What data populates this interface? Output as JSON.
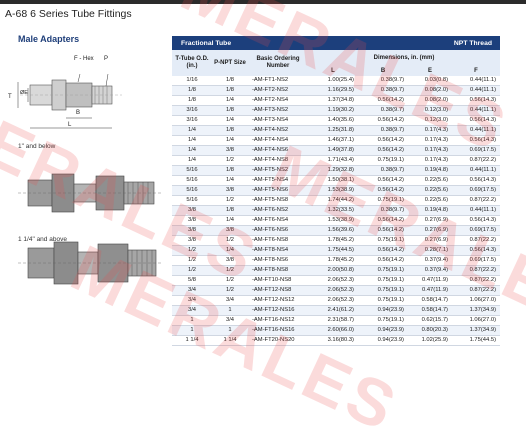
{
  "header": {
    "title": "A-68  6 Series Tube Fittings"
  },
  "section": {
    "title": "Male Adapters"
  },
  "diagram": {
    "labels": {
      "f_hex": "F - Hex",
      "p": "P",
      "t": "T",
      "d": "ØE",
      "b": "B",
      "l": "L"
    },
    "caption_top": "1\" and below",
    "caption_bottom": "1 1/4\" and above"
  },
  "table": {
    "band_left": "Fractional Tube",
    "band_right": "NPT Thread",
    "col_tube": "T-Tube O.D. (in.)",
    "col_npt": "P-NPT Size",
    "col_basic": "Basic Ordering Number",
    "col_dims": "Dimensions, in. (mm)",
    "sub_l": "L",
    "sub_b": "B",
    "sub_e": "E",
    "sub_f": "F",
    "rows": [
      [
        "1/16",
        "1/8",
        "-AM-FT1-NS2",
        "1.00(25.4)",
        "0.38(9.7)",
        "0.03(0.8)",
        "0.44(11.1)"
      ],
      [
        "1/8",
        "1/8",
        "-AM-FT2-NS2",
        "1.16(29.5)",
        "0.38(9.7)",
        "0.08(2.0)",
        "0.44(11.1)"
      ],
      [
        "1/8",
        "1/4",
        "-AM-FT2-NS4",
        "1.37(34.8)",
        "0.56(14.2)",
        "0.08(2.0)",
        "0.56(14.3)"
      ],
      [
        "3/16",
        "1/8",
        "-AM-FT3-NS2",
        "1.19(30.2)",
        "0.38(9.7)",
        "0.12(3.0)",
        "0.44(11.1)"
      ],
      [
        "3/16",
        "1/4",
        "-AM-FT3-NS4",
        "1.40(35.6)",
        "0.56(14.2)",
        "0.12(3.0)",
        "0.56(14.3)"
      ],
      [
        "1/4",
        "1/8",
        "-AM-FT4-NS2",
        "1.25(31.8)",
        "0.38(9.7)",
        "0.17(4.3)",
        "0.44(11.1)"
      ],
      [
        "1/4",
        "1/4",
        "-AM-FT4-NS4",
        "1.46(37.1)",
        "0.56(14.2)",
        "0.17(4.3)",
        "0.56(14.3)"
      ],
      [
        "1/4",
        "3/8",
        "-AM-FT4-NS6",
        "1.49(37.8)",
        "0.56(14.2)",
        "0.17(4.3)",
        "0.69(17.5)"
      ],
      [
        "1/4",
        "1/2",
        "-AM-FT4-NS8",
        "1.71(43.4)",
        "0.75(19.1)",
        "0.17(4.3)",
        "0.87(22.2)"
      ],
      [
        "5/16",
        "1/8",
        "-AM-FT5-NS2",
        "1.29(32.8)",
        "0.38(9.7)",
        "0.19(4.8)",
        "0.44(11.1)"
      ],
      [
        "5/16",
        "1/4",
        "-AM-FT5-NS4",
        "1.50(38.1)",
        "0.56(14.2)",
        "0.22(5.6)",
        "0.56(14.3)"
      ],
      [
        "5/16",
        "3/8",
        "-AM-FT5-NS6",
        "1.53(38.9)",
        "0.56(14.2)",
        "0.22(5.6)",
        "0.69(17.5)"
      ],
      [
        "5/16",
        "1/2",
        "-AM-FT5-NS8",
        "1.74(44.2)",
        "0.75(19.1)",
        "0.22(5.6)",
        "0.87(22.2)"
      ],
      [
        "3/8",
        "1/8",
        "-AM-FT6-NS2",
        "1.32(33.5)",
        "0.38(9.7)",
        "0.19(4.8)",
        "0.44(11.1)"
      ],
      [
        "3/8",
        "1/4",
        "-AM-FT6-NS4",
        "1.53(38.9)",
        "0.56(14.2)",
        "0.27(6.9)",
        "0.56(14.3)"
      ],
      [
        "3/8",
        "3/8",
        "-AM-FT6-NS6",
        "1.56(39.6)",
        "0.56(14.2)",
        "0.27(6.9)",
        "0.69(17.5)"
      ],
      [
        "3/8",
        "1/2",
        "-AM-FT6-NS8",
        "1.78(45.2)",
        "0.75(19.1)",
        "0.27(6.9)",
        "0.87(22.2)"
      ],
      [
        "1/2",
        "1/4",
        "-AM-FT8-NS4",
        "1.75(44.5)",
        "0.56(14.2)",
        "0.28(7.1)",
        "0.56(14.3)"
      ],
      [
        "1/2",
        "3/8",
        "-AM-FT8-NS6",
        "1.78(45.2)",
        "0.56(14.2)",
        "0.37(9.4)",
        "0.69(17.5)"
      ],
      [
        "1/2",
        "1/2",
        "-AM-FT8-NS8",
        "2.00(50.8)",
        "0.75(19.1)",
        "0.37(9.4)",
        "0.87(22.2)"
      ],
      [
        "5/8",
        "1/2",
        "-AM-FT10-NS8",
        "2.06(52.3)",
        "0.75(19.1)",
        "0.47(11.9)",
        "0.87(22.2)"
      ],
      [
        "3/4",
        "1/2",
        "-AM-FT12-NS8",
        "2.06(52.3)",
        "0.75(19.1)",
        "0.47(11.9)",
        "0.87(22.2)"
      ],
      [
        "3/4",
        "3/4",
        "-AM-FT12-NS12",
        "2.06(52.3)",
        "0.75(19.1)",
        "0.58(14.7)",
        "1.06(27.0)"
      ],
      [
        "3/4",
        "1",
        "-AM-FT12-NS16",
        "2.41(61.2)",
        "0.94(23.9)",
        "0.58(14.7)",
        "1.37(34.9)"
      ],
      [
        "1",
        "3/4",
        "-AM-FT16-NS12",
        "2.31(58.7)",
        "0.75(19.1)",
        "0.62(15.7)",
        "1.06(27.0)"
      ],
      [
        "1",
        "1",
        "-AM-FT16-NS16",
        "2.60(66.0)",
        "0.94(23.9)",
        "0.80(20.3)",
        "1.37(34.9)"
      ],
      [
        "1 1/4",
        "1 1/4",
        "-AM-FT20-NS20",
        "3.16(80.3)",
        "0.94(23.9)",
        "1.02(25.9)",
        "1.75(44.5)"
      ]
    ]
  },
  "watermark": {
    "text": "MERALES"
  },
  "colors": {
    "header_band": "#1c3f7c",
    "subheader": "#e4ecf7",
    "row_alt": "#eef3fa",
    "title_blue": "#1f3f7a"
  }
}
